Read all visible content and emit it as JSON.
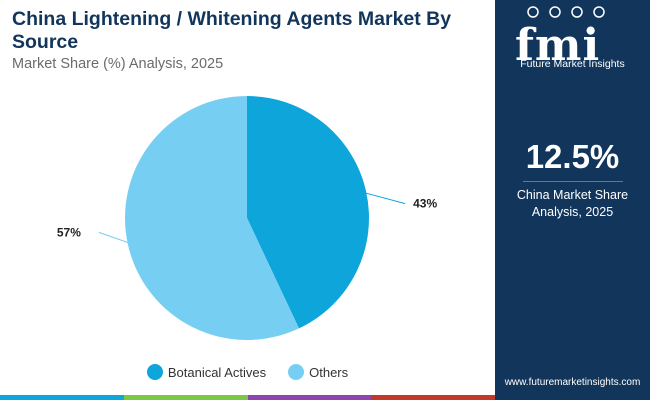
{
  "header": {
    "title": "China Lightening / Whitening Agents Market By Source",
    "subtitle": "Market Share (%) Analysis, 2025"
  },
  "chart_data": {
    "type": "pie",
    "title": "China Lightening / Whitening Agents Market By Source",
    "subtitle": "Market Share (%) Analysis, 2025",
    "categories": [
      "Botanical Actives",
      "Others"
    ],
    "values": [
      43,
      57
    ],
    "labels": [
      "43%",
      "57%"
    ],
    "colors": [
      "#0ea5db",
      "#76cff2"
    ],
    "legend_position": "bottom"
  },
  "sidebar": {
    "logo_text": "fmi",
    "logo_caption": "Future Market Insights",
    "stat_value": "12.5%",
    "stat_label_line1": "China Market Share",
    "stat_label_line2": "Analysis, 2025",
    "website": "www.futuremarketinsights.com"
  },
  "bottom_bar_colors": [
    "#0ea5db",
    "#7ac943",
    "#8e44ad",
    "#c0392b"
  ]
}
